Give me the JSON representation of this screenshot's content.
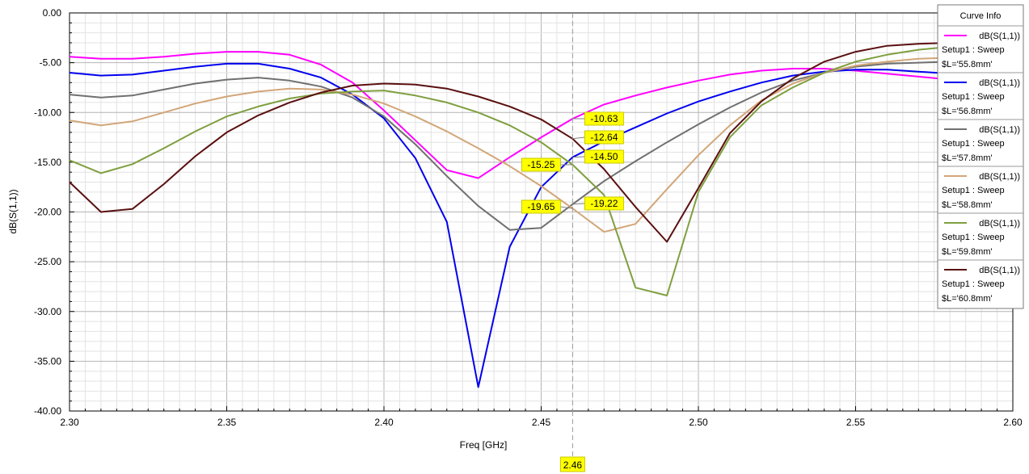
{
  "chart_data": {
    "type": "line",
    "title": "",
    "xlabel": "Freq [GHz]",
    "ylabel": "dB(S(1,1))",
    "xlim": [
      2.3,
      2.6
    ],
    "ylim": [
      -40.0,
      0.0
    ],
    "x_ticks": [
      "2.30",
      "2.35",
      "2.40",
      "2.45",
      "2.50",
      "2.55",
      "2.60"
    ],
    "y_ticks": [
      "0.00",
      "-5.00",
      "-10.00",
      "-15.00",
      "-20.00",
      "-25.00",
      "-30.00",
      "-35.00",
      "-40.00"
    ],
    "grid": true,
    "legend": {
      "title": "Curve Info",
      "placement": "top-right"
    },
    "x": [
      2.3,
      2.31,
      2.32,
      2.33,
      2.34,
      2.35,
      2.36,
      2.37,
      2.38,
      2.39,
      2.4,
      2.41,
      2.42,
      2.43,
      2.44,
      2.45,
      2.46,
      2.47,
      2.48,
      2.49,
      2.5,
      2.51,
      2.52,
      2.53,
      2.54,
      2.55,
      2.56,
      2.57,
      2.58
    ],
    "series": [
      {
        "name": "dB(S(1,1))",
        "setup": "Setup1 : Sweep",
        "param": "$L='55.8mm'",
        "color": "#ff00ff",
        "values": [
          -4.4,
          -4.6,
          -4.6,
          -4.4,
          -4.1,
          -3.9,
          -3.9,
          -4.2,
          -5.2,
          -7.0,
          -9.8,
          -12.8,
          -15.8,
          -16.6,
          -14.5,
          -12.5,
          -10.63,
          -9.2,
          -8.3,
          -7.5,
          -6.8,
          -6.2,
          -5.8,
          -5.6,
          -5.6,
          -5.8,
          -6.1,
          -6.4,
          -6.7
        ]
      },
      {
        "name": "dB(S(1,1))",
        "setup": "Setup1 : Sweep",
        "param": "$L='56.8mm'",
        "color": "#0000ee",
        "values": [
          -6.0,
          -6.3,
          -6.2,
          -5.8,
          -5.4,
          -5.1,
          -5.1,
          -5.6,
          -6.5,
          -8.2,
          -10.6,
          -14.6,
          -21.0,
          -37.6,
          -23.5,
          -17.5,
          -14.5,
          -12.9,
          -11.5,
          -10.1,
          -8.9,
          -7.9,
          -7.0,
          -6.3,
          -5.9,
          -5.7,
          -5.7,
          -5.9,
          -6.1
        ]
      },
      {
        "name": "dB(S(1,1))",
        "setup": "Setup1 : Sweep",
        "param": "$L='57.8mm'",
        "color": "#707070",
        "values": [
          -8.2,
          -8.5,
          -8.3,
          -7.7,
          -7.1,
          -6.7,
          -6.5,
          -6.8,
          -7.4,
          -8.5,
          -10.4,
          -13.2,
          -16.4,
          -19.4,
          -21.8,
          -21.6,
          -19.22,
          -16.9,
          -14.9,
          -13.0,
          -11.2,
          -9.5,
          -8.0,
          -6.8,
          -6.0,
          -5.4,
          -5.1,
          -5.0,
          -4.9
        ]
      },
      {
        "name": "dB(S(1,1))",
        "setup": "Setup1 : Sweep",
        "param": "$L='58.8mm'",
        "color": "#d2a679",
        "values": [
          -10.8,
          -11.3,
          -10.9,
          -10.0,
          -9.1,
          -8.4,
          -7.9,
          -7.6,
          -7.7,
          -8.2,
          -9.1,
          -10.4,
          -11.9,
          -13.6,
          -15.4,
          -17.4,
          -19.65,
          -22.0,
          -21.2,
          -17.7,
          -14.3,
          -11.3,
          -8.8,
          -7.1,
          -6.0,
          -5.3,
          -4.9,
          -4.6,
          -4.5
        ]
      },
      {
        "name": "dB(S(1,1))",
        "setup": "Setup1 : Sweep",
        "param": "$L='59.8mm'",
        "color": "#7f9f3f",
        "values": [
          -14.8,
          -16.1,
          -15.2,
          -13.6,
          -11.9,
          -10.4,
          -9.4,
          -8.6,
          -8.1,
          -7.9,
          -7.8,
          -8.3,
          -9.0,
          -10.0,
          -11.3,
          -13.0,
          -15.25,
          -18.3,
          -27.6,
          -28.4,
          -18.0,
          -12.5,
          -9.3,
          -7.5,
          -6.0,
          -4.9,
          -4.2,
          -3.7,
          -3.4
        ]
      },
      {
        "name": "dB(S(1,1))",
        "setup": "Setup1 : Sweep",
        "param": "$L='60.8mm'",
        "color": "#5a0f0f",
        "values": [
          -17.0,
          -20.0,
          -19.7,
          -17.2,
          -14.4,
          -12.0,
          -10.3,
          -9.0,
          -8.0,
          -7.3,
          -7.1,
          -7.2,
          -7.6,
          -8.4,
          -9.4,
          -10.7,
          -12.64,
          -15.7,
          -19.5,
          -23.0,
          -17.6,
          -12.1,
          -8.9,
          -6.6,
          -4.9,
          -3.9,
          -3.3,
          -3.1,
          -3.0
        ]
      }
    ],
    "markers": {
      "x": 2.46,
      "x_label": "2.46",
      "labels": [
        {
          "text": "-10.63",
          "y": -10.63,
          "side": "right"
        },
        {
          "text": "-12.64",
          "y": -12.64,
          "side": "right"
        },
        {
          "text": "-14.50",
          "y": -14.5,
          "side": "right"
        },
        {
          "text": "-15.25",
          "y": -15.25,
          "side": "left"
        },
        {
          "text": "-19.22",
          "y": -19.22,
          "side": "right"
        },
        {
          "text": "-19.65",
          "y": -19.65,
          "side": "left"
        }
      ]
    }
  }
}
